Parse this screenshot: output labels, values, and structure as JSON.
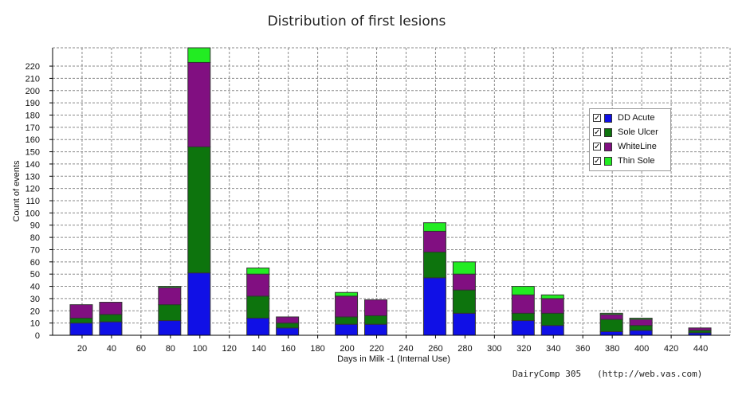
{
  "chart_data": {
    "type": "bar",
    "stacked": true,
    "title": "Distribution of first lesions",
    "xlabel": "Days in Milk -1 (Internal Use)",
    "ylabel": "Count of events",
    "ylim": [
      0,
      235
    ],
    "yticks": [
      0,
      10,
      20,
      30,
      40,
      50,
      60,
      70,
      80,
      90,
      100,
      110,
      120,
      130,
      140,
      150,
      160,
      170,
      180,
      190,
      200,
      210,
      220
    ],
    "xticks": [
      20,
      40,
      60,
      80,
      100,
      120,
      140,
      160,
      180,
      200,
      220,
      240,
      260,
      280,
      300,
      320,
      340,
      360,
      380,
      400,
      420,
      440
    ],
    "xlim": [
      0,
      460
    ],
    "categories": [
      20,
      40,
      80,
      100,
      140,
      160,
      200,
      220,
      260,
      280,
      320,
      340,
      380,
      400,
      440
    ],
    "series": [
      {
        "name": "DD Acute",
        "color": "#1010e6",
        "values": [
          10,
          11,
          12,
          51,
          14,
          6,
          9,
          9,
          47,
          18,
          12,
          8,
          3,
          4,
          2
        ]
      },
      {
        "name": "Sole Ulcer",
        "color": "#0d740d",
        "values": [
          4,
          6,
          13,
          103,
          18,
          4,
          6,
          7,
          21,
          19,
          6,
          10,
          10,
          4,
          2
        ]
      },
      {
        "name": "WhiteLine",
        "color": "#810f81",
        "values": [
          11,
          10,
          14,
          69,
          18,
          5,
          17,
          13,
          17,
          13,
          15,
          12,
          4,
          5,
          2
        ]
      },
      {
        "name": "Thin Sole",
        "color": "#22ec22",
        "values": [
          0,
          0,
          1,
          12,
          5,
          0,
          3,
          0,
          7,
          10,
          7,
          3,
          1,
          1,
          0
        ]
      }
    ],
    "grid": true,
    "legend_position": "right"
  },
  "footer": {
    "text": "DairyComp 305   (http://web.vas.com)"
  },
  "legend": {
    "check_mark": "✓"
  }
}
